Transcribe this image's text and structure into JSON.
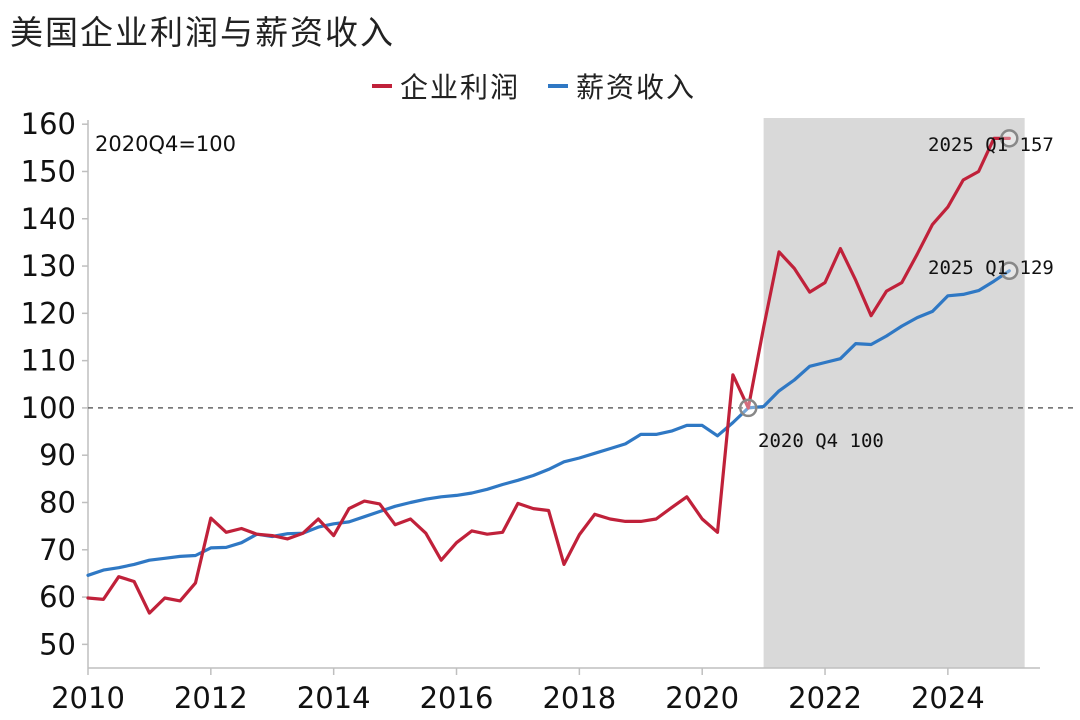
{
  "title": "美国企业利润与薪资收入",
  "legend": [
    {
      "label": "企业利润",
      "color": "#c0213a"
    },
    {
      "label": "薪资收入",
      "color": "#2f78c4"
    }
  ],
  "colors": {
    "profit": "#c0213a",
    "wage": "#2f78c4",
    "shade": "#d9d9d9",
    "refline": "#666666",
    "marker": "#888888"
  },
  "base_note": "2020Q4=100",
  "annotations": {
    "profit_end": "2025 Q1 157",
    "wage_end": "2025 Q1 129",
    "base_point": "2020 Q4 100"
  },
  "chart_data": {
    "type": "line",
    "title": "美国企业利润与薪资收入",
    "xlabel": "",
    "ylabel": "",
    "xlim": [
      2010,
      2025.5
    ],
    "ylim": [
      45,
      163
    ],
    "yticks": [
      50,
      60,
      70,
      80,
      90,
      100,
      110,
      120,
      130,
      140,
      150,
      160
    ],
    "xticks": [
      2010,
      2012,
      2014,
      2016,
      2018,
      2020,
      2022,
      2024
    ],
    "reference_line": 100,
    "shaded_range": [
      2021.0,
      2025.25
    ],
    "grid": false,
    "legend_position": "top",
    "series": [
      {
        "name": "企业利润",
        "x": [
          2010.0,
          2010.25,
          2010.5,
          2010.75,
          2011.0,
          2011.25,
          2011.5,
          2011.75,
          2012.0,
          2012.25,
          2012.5,
          2012.75,
          2013.0,
          2013.25,
          2013.5,
          2013.75,
          2014.0,
          2014.25,
          2014.5,
          2014.75,
          2015.0,
          2015.25,
          2015.5,
          2015.75,
          2016.0,
          2016.25,
          2016.5,
          2016.75,
          2017.0,
          2017.25,
          2017.5,
          2017.75,
          2018.0,
          2018.25,
          2018.5,
          2018.75,
          2019.0,
          2019.25,
          2019.5,
          2019.75,
          2020.0,
          2020.25,
          2020.5,
          2020.75,
          2021.0,
          2021.25,
          2021.5,
          2021.75,
          2022.0,
          2022.25,
          2022.5,
          2022.75,
          2023.0,
          2023.25,
          2023.5,
          2023.75,
          2024.0,
          2024.25,
          2024.5,
          2024.75,
          2025.0
        ],
        "y": [
          59.8,
          59.5,
          64.3,
          63.3,
          56.6,
          59.8,
          59.2,
          63.0,
          76.7,
          73.7,
          74.5,
          73.3,
          73.0,
          72.3,
          73.5,
          76.5,
          73.0,
          78.7,
          80.3,
          79.7,
          75.3,
          76.5,
          73.5,
          67.8,
          71.5,
          74.0,
          73.3,
          73.7,
          79.8,
          78.7,
          78.3,
          66.9,
          73.2,
          77.5,
          76.5,
          76.0,
          76.0,
          76.5,
          78.9,
          81.2,
          76.5,
          73.7,
          107.0,
          100.0,
          117.0,
          133.0,
          129.5,
          124.5,
          126.5,
          133.7,
          127.0,
          119.5,
          124.7,
          126.5,
          132.5,
          138.8,
          142.5,
          148.2,
          150.0,
          157.0,
          157.0
        ]
      },
      {
        "name": "薪资收入",
        "x": [
          2010.0,
          2010.25,
          2010.5,
          2010.75,
          2011.0,
          2011.25,
          2011.5,
          2011.75,
          2012.0,
          2012.25,
          2012.5,
          2012.75,
          2013.0,
          2013.25,
          2013.5,
          2013.75,
          2014.0,
          2014.25,
          2014.5,
          2014.75,
          2015.0,
          2015.25,
          2015.5,
          2015.75,
          2016.0,
          2016.25,
          2016.5,
          2016.75,
          2017.0,
          2017.25,
          2017.5,
          2017.75,
          2018.0,
          2018.25,
          2018.5,
          2018.75,
          2019.0,
          2019.25,
          2019.5,
          2019.75,
          2020.0,
          2020.25,
          2020.5,
          2020.75,
          2021.0,
          2021.25,
          2021.5,
          2021.75,
          2022.0,
          2022.25,
          2022.5,
          2022.75,
          2023.0,
          2023.25,
          2023.5,
          2023.75,
          2024.0,
          2024.25,
          2024.5,
          2024.75,
          2025.0
        ],
        "y": [
          64.6,
          65.7,
          66.2,
          66.9,
          67.8,
          68.2,
          68.6,
          68.8,
          70.4,
          70.5,
          71.5,
          73.3,
          72.8,
          73.4,
          73.5,
          74.8,
          75.5,
          75.9,
          77.0,
          78.1,
          79.2,
          80.0,
          80.7,
          81.2,
          81.5,
          82.0,
          82.8,
          83.8,
          84.7,
          85.7,
          87.0,
          88.6,
          89.4,
          90.4,
          91.4,
          92.4,
          94.4,
          94.4,
          95.1,
          96.3,
          96.3,
          94.1,
          96.9,
          100.0,
          100.3,
          103.6,
          105.9,
          108.8,
          109.6,
          110.4,
          113.6,
          113.4,
          115.2,
          117.3,
          119.1,
          120.4,
          123.7,
          124.0,
          124.8,
          126.8,
          129.0
        ]
      }
    ]
  }
}
